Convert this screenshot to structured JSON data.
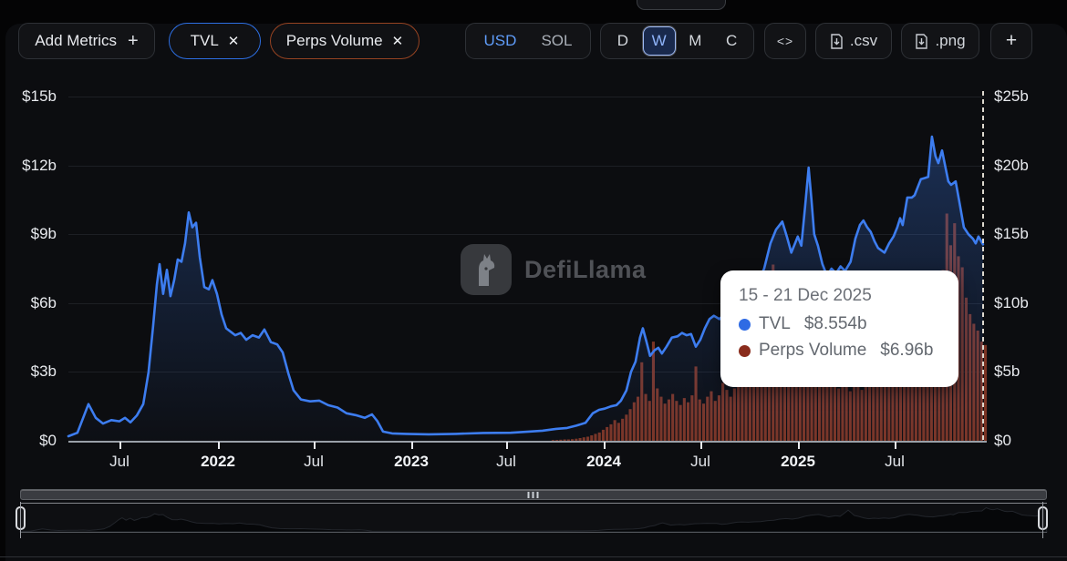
{
  "toolbar": {
    "add_metrics_label": "Add Metrics",
    "add_metrics_plus": "+",
    "metric_pills": [
      {
        "label": "TVL",
        "close": "✕",
        "border_color": "#2d6fe3"
      },
      {
        "label": "Perps Volume",
        "close": "✕",
        "border_color": "#964322"
      }
    ],
    "currency_toggle": {
      "options": [
        "USD",
        "SOL"
      ],
      "selected": "USD"
    },
    "interval_toggle": {
      "options": [
        "D",
        "W",
        "M",
        "C"
      ],
      "selected": "W"
    },
    "embed_label": "<>",
    "csv_label": ".csv",
    "png_label": ".png",
    "more_label": "+"
  },
  "chart": {
    "watermark": "DefiLlama",
    "left_axis": [
      "$15b",
      "$12b",
      "$9b",
      "$6b",
      "$3b",
      "$0"
    ],
    "right_axis": [
      "$25b",
      "$20b",
      "$15b",
      "$10b",
      "$5b",
      "$0"
    ],
    "x_axis": [
      "Jul",
      "2022",
      "Jul",
      "2023",
      "Jul",
      "2024",
      "Jul",
      "2025",
      "Jul"
    ],
    "tooltip": {
      "date_range": "15 - 21 Dec 2025",
      "rows": [
        {
          "label": "TVL",
          "value": "$8.554b",
          "color": "#2f6be4"
        },
        {
          "label": "Perps Volume",
          "value": "$6.96b",
          "color": "#8a2c1c"
        }
      ]
    }
  },
  "chart_data": {
    "type": "combo",
    "x_unit": "decimal_year",
    "xlim": [
      2021.29,
      2025.95
    ],
    "left_ylim": [
      0,
      15
    ],
    "right_ylim": [
      0,
      25
    ],
    "left_ticks": [
      "$15b",
      "$12b",
      "$9b",
      "$6b",
      "$3b",
      "$0"
    ],
    "right_ticks": [
      "$25b",
      "$20b",
      "$15b",
      "$10b",
      "$5b",
      "$0"
    ],
    "x_tick_labels": [
      "Jul",
      "2022",
      "Jul",
      "2023",
      "Jul",
      "2024",
      "Jul",
      "2025",
      "Jul"
    ],
    "hover": {
      "date": "15 - 21 Dec 2025",
      "TVL_b": 8.554,
      "Perps_Volume_b": 6.96
    },
    "series": [
      {
        "name": "TVL",
        "type": "line-area",
        "axis": "left",
        "unit": "$b",
        "color": "#3d7df0",
        "points": [
          [
            2021.29,
            0.2
          ],
          [
            2021.336,
            0.35
          ],
          [
            2021.392,
            1.6
          ],
          [
            2021.429,
            1.0
          ],
          [
            2021.466,
            0.75
          ],
          [
            2021.508,
            0.9
          ],
          [
            2021.549,
            0.85
          ],
          [
            2021.577,
            1.0
          ],
          [
            2021.605,
            0.8
          ],
          [
            2021.637,
            1.1
          ],
          [
            2021.67,
            1.6
          ],
          [
            2021.697,
            3.0
          ],
          [
            2021.72,
            5.0
          ],
          [
            2021.739,
            6.8
          ],
          [
            2021.753,
            7.7
          ],
          [
            2021.771,
            6.4
          ],
          [
            2021.79,
            7.45
          ],
          [
            2021.808,
            6.3
          ],
          [
            2021.827,
            7.0
          ],
          [
            2021.845,
            7.9
          ],
          [
            2021.864,
            7.8
          ],
          [
            2021.882,
            8.6
          ],
          [
            2021.901,
            9.95
          ],
          [
            2021.919,
            9.3
          ],
          [
            2021.938,
            9.5
          ],
          [
            2021.957,
            8.0
          ],
          [
            2021.98,
            6.7
          ],
          [
            2022.003,
            6.6
          ],
          [
            2022.021,
            7.0
          ],
          [
            2022.044,
            6.4
          ],
          [
            2022.068,
            5.5
          ],
          [
            2022.091,
            4.9
          ],
          [
            2022.114,
            4.75
          ],
          [
            2022.137,
            4.6
          ],
          [
            2022.165,
            4.7
          ],
          [
            2022.193,
            4.4
          ],
          [
            2022.225,
            4.6
          ],
          [
            2022.257,
            4.5
          ],
          [
            2022.285,
            4.85
          ],
          [
            2022.318,
            4.3
          ],
          [
            2022.35,
            4.2
          ],
          [
            2022.378,
            3.85
          ],
          [
            2022.406,
            2.95
          ],
          [
            2022.433,
            2.2
          ],
          [
            2022.47,
            1.8
          ],
          [
            2022.517,
            1.72
          ],
          [
            2022.563,
            1.75
          ],
          [
            2022.609,
            1.55
          ],
          [
            2022.656,
            1.45
          ],
          [
            2022.702,
            1.2
          ],
          [
            2022.748,
            1.12
          ],
          [
            2022.794,
            1.0
          ],
          [
            2022.831,
            1.15
          ],
          [
            2022.859,
            0.85
          ],
          [
            2022.887,
            0.4
          ],
          [
            2022.933,
            0.32
          ],
          [
            2023.003,
            0.3
          ],
          [
            2023.119,
            0.28
          ],
          [
            2023.257,
            0.3
          ],
          [
            2023.396,
            0.34
          ],
          [
            2023.535,
            0.35
          ],
          [
            2023.627,
            0.4
          ],
          [
            2023.697,
            0.44
          ],
          [
            2023.766,
            0.52
          ],
          [
            2023.822,
            0.56
          ],
          [
            2023.868,
            0.66
          ],
          [
            2023.915,
            0.78
          ],
          [
            2023.952,
            1.2
          ],
          [
            2023.984,
            1.35
          ],
          [
            2024.012,
            1.4
          ],
          [
            2024.044,
            1.5
          ],
          [
            2024.072,
            1.55
          ],
          [
            2024.095,
            1.75
          ],
          [
            2024.123,
            2.2
          ],
          [
            2024.146,
            3.0
          ],
          [
            2024.169,
            3.45
          ],
          [
            2024.192,
            4.5
          ],
          [
            2024.206,
            4.9
          ],
          [
            2024.225,
            4.3
          ],
          [
            2024.243,
            3.7
          ],
          [
            2024.266,
            3.95
          ],
          [
            2024.285,
            4.05
          ],
          [
            2024.303,
            3.8
          ],
          [
            2024.326,
            4.1
          ],
          [
            2024.354,
            4.5
          ],
          [
            2024.382,
            4.55
          ],
          [
            2024.405,
            4.7
          ],
          [
            2024.428,
            4.6
          ],
          [
            2024.451,
            4.65
          ],
          [
            2024.475,
            4.1
          ],
          [
            2024.498,
            4.4
          ],
          [
            2024.521,
            4.9
          ],
          [
            2024.544,
            5.3
          ],
          [
            2024.567,
            5.45
          ],
          [
            2024.595,
            5.3
          ],
          [
            2024.618,
            5.5
          ],
          [
            2024.65,
            5.6
          ],
          [
            2024.683,
            6.2
          ],
          [
            2024.711,
            6.4
          ],
          [
            2024.738,
            7.0
          ],
          [
            2024.766,
            7.3
          ],
          [
            2024.794,
            7.0
          ],
          [
            2024.822,
            7.5
          ],
          [
            2024.854,
            8.6
          ],
          [
            2024.882,
            9.2
          ],
          [
            2024.914,
            9.55
          ],
          [
            2024.937,
            8.9
          ],
          [
            2024.96,
            8.2
          ],
          [
            2024.979,
            8.6
          ],
          [
            2024.993,
            8.9
          ],
          [
            2025.011,
            8.5
          ],
          [
            2025.03,
            10.2
          ],
          [
            2025.048,
            11.9
          ],
          [
            2025.062,
            10.5
          ],
          [
            2025.076,
            9.0
          ],
          [
            2025.095,
            8.5
          ],
          [
            2025.118,
            7.7
          ],
          [
            2025.141,
            7.2
          ],
          [
            2025.164,
            7.5
          ],
          [
            2025.187,
            7.3
          ],
          [
            2025.21,
            7.6
          ],
          [
            2025.233,
            7.4
          ],
          [
            2025.261,
            7.8
          ],
          [
            2025.285,
            8.8
          ],
          [
            2025.308,
            9.4
          ],
          [
            2025.326,
            9.6
          ],
          [
            2025.345,
            9.3
          ],
          [
            2025.363,
            9.1
          ],
          [
            2025.382,
            8.7
          ],
          [
            2025.4,
            8.4
          ],
          [
            2025.433,
            8.2
          ],
          [
            2025.456,
            8.6
          ],
          [
            2025.479,
            8.9
          ],
          [
            2025.498,
            9.3
          ],
          [
            2025.512,
            9.7
          ],
          [
            2025.525,
            9.4
          ],
          [
            2025.549,
            10.6
          ],
          [
            2025.572,
            10.6
          ],
          [
            2025.586,
            10.7
          ],
          [
            2025.604,
            11.1
          ],
          [
            2025.618,
            11.4
          ],
          [
            2025.637,
            11.45
          ],
          [
            2025.655,
            11.5
          ],
          [
            2025.674,
            13.25
          ],
          [
            2025.692,
            12.4
          ],
          [
            2025.706,
            12.1
          ],
          [
            2025.725,
            12.65
          ],
          [
            2025.743,
            11.9
          ],
          [
            2025.757,
            11.3
          ],
          [
            2025.771,
            11.15
          ],
          [
            2025.794,
            11.3
          ],
          [
            2025.813,
            10.4
          ],
          [
            2025.836,
            9.3
          ],
          [
            2025.859,
            9.0
          ],
          [
            2025.882,
            8.8
          ],
          [
            2025.896,
            8.6
          ],
          [
            2025.91,
            8.9
          ],
          [
            2025.933,
            8.554
          ]
        ]
      },
      {
        "name": "Perps Volume",
        "type": "bar",
        "axis": "right",
        "unit": "$b",
        "color": "#7c3424",
        "x_start": 2023.75,
        "x_step": 0.0196,
        "values": [
          0.05,
          0.06,
          0.08,
          0.1,
          0.1,
          0.12,
          0.15,
          0.2,
          0.25,
          0.3,
          0.4,
          0.5,
          0.6,
          0.8,
          1.0,
          1.2,
          1.5,
          1.3,
          1.6,
          1.9,
          2.3,
          2.8,
          3.2,
          5.7,
          3.4,
          2.9,
          7.2,
          3.8,
          3.2,
          2.7,
          3.0,
          3.4,
          2.9,
          2.6,
          3.1,
          2.8,
          3.3,
          5.4,
          3.0,
          2.7,
          3.2,
          3.6,
          2.9,
          3.3,
          4.2,
          3.7,
          3.2,
          3.8,
          4.3,
          3.9,
          4.6,
          4.2,
          4.8,
          5.3,
          4.7,
          6.0,
          7.5,
          12.8,
          11.4,
          8.6,
          7.2,
          6.4,
          5.8,
          6.6,
          8.0,
          10.2,
          9.0,
          7.4,
          6.2,
          5.6,
          5.0,
          4.6,
          5.2,
          4.2,
          3.8,
          4.4,
          4.0,
          3.6,
          4.6,
          4.1,
          3.7,
          4.3,
          4.8,
          4.4,
          5.0,
          4.6,
          5.8,
          6.4,
          5.9,
          6.8,
          6.2,
          7.0,
          6.5,
          7.4,
          6.8,
          7.8,
          8.4,
          7.6,
          8.8,
          9.6,
          10.8,
          12.4,
          16.5,
          14.2,
          15.8,
          13.4,
          12.6,
          10.4,
          9.2,
          8.5,
          8.0,
          7.2,
          6.96
        ]
      }
    ]
  }
}
